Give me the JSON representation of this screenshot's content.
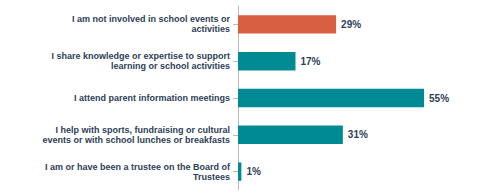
{
  "chart_data": {
    "type": "bar",
    "orientation": "horizontal",
    "categories": [
      "I am or have been a trustee on the Board of\nTrustees",
      "I help with sports, fundraising or cultural\nevents or with school lunches or breakfasts",
      "I attend parent information meetings",
      "I share knowledge or expertise to support\nlearning or school activities",
      "I am not involved in school events or\nactivities"
    ],
    "values": [
      1,
      31,
      55,
      17,
      29
    ],
    "value_labels": [
      "1%",
      "31%",
      "55%",
      "17%",
      "29%"
    ],
    "colors": [
      "#008b94",
      "#008b94",
      "#008b94",
      "#008b94",
      "#d95f43"
    ],
    "xlim": [
      0,
      68
    ],
    "data_labels": true,
    "tick_labels": "y",
    "grid": false
  }
}
